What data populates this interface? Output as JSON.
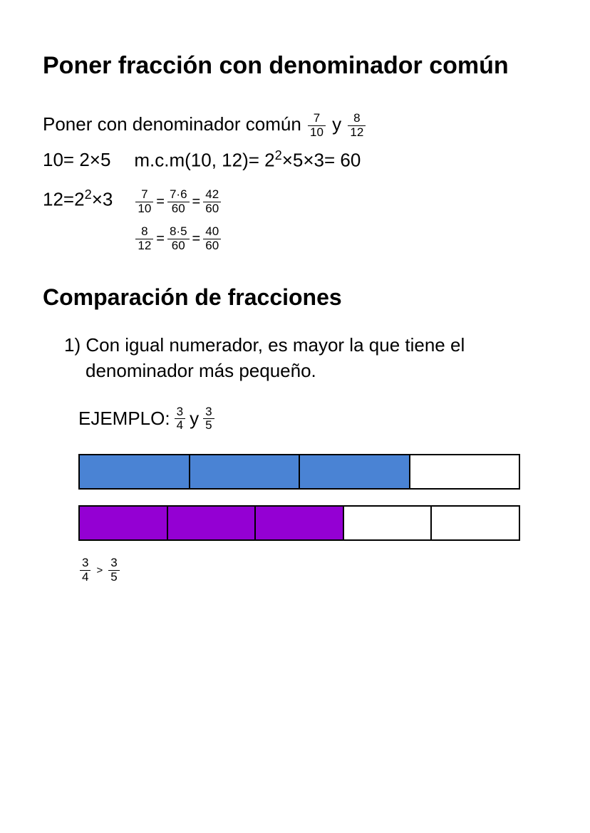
{
  "section1": {
    "title": "Poner fracción con denominador común",
    "intro_prefix": "Poner con denominador común ",
    "frac_a": {
      "num": "7",
      "den": "10"
    },
    "conj": " y ",
    "frac_b": {
      "num": "8",
      "den": "12"
    },
    "fact10": "10= 2×5",
    "fact12_pre": "12=2",
    "fact12_exp": "2",
    "fact12_post": "×3",
    "mcm_pre": "m.c.m(10, 12)= 2",
    "mcm_exp": "2",
    "mcm_post": "×5×3= 60",
    "eq1": {
      "f1": {
        "num": "7",
        "den": "10"
      },
      "f2": {
        "num": "7·6",
        "den": "60"
      },
      "f3": {
        "num": "42",
        "den": "60"
      }
    },
    "eq2": {
      "f1": {
        "num": "8",
        "den": "12"
      },
      "f2": {
        "num": "8·5",
        "den": "60"
      },
      "f3": {
        "num": "40",
        "den": "60"
      }
    },
    "equals": "="
  },
  "section2": {
    "title": "Comparación de fracciones",
    "item1_num": "1) ",
    "item1_text": "Con igual numerador, es mayor la que tiene el denominador más pequeño.",
    "example_label": "EJEMPLO: ",
    "ex_frac_a": {
      "num": "3",
      "den": "4"
    },
    "ex_conj": " y ",
    "ex_frac_b": {
      "num": "3",
      "den": "5"
    },
    "bar1": {
      "segments": 4,
      "filled": 3,
      "fill_color": "#4a83d4",
      "empty_color": "#ffffff"
    },
    "bar2": {
      "segments": 5,
      "filled": 3,
      "fill_color": "#9400d3",
      "empty_color": "#ffffff"
    },
    "result": {
      "left": {
        "num": "3",
        "den": "4"
      },
      "op": ">",
      "right": {
        "num": "3",
        "den": "5"
      }
    }
  }
}
